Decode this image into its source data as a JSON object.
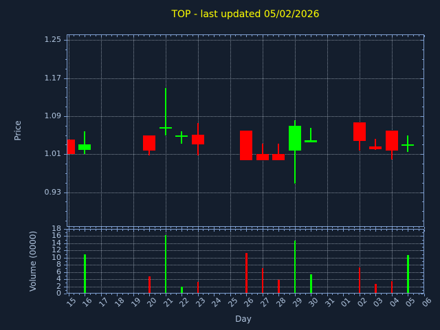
{
  "chart_data": {
    "type": "candlestick",
    "title": "TOP - last updated 05/02/2026",
    "xlabel": "Day",
    "price_ylabel": "Price",
    "volume_ylabel": "Volume (0000)",
    "x_ticklabels": [
      "15",
      "16",
      "17",
      "18",
      "19",
      "20",
      "21",
      "22",
      "23",
      "24",
      "25",
      "26",
      "27",
      "28",
      "29",
      "30",
      "31",
      "01",
      "02",
      "03",
      "04",
      "05",
      "06"
    ],
    "price_yticklabels": [
      "0.93",
      "1.01",
      "1.09",
      "1.17",
      "1.25"
    ],
    "volume_yticklabels": [
      "0",
      "2",
      "4",
      "6",
      "8",
      "10",
      "12",
      "14",
      "16",
      "18"
    ],
    "price_ylim": [
      0.857,
      1.262
    ],
    "volume_ylim": [
      0,
      18
    ],
    "grid": "dotted, horizontal at price/volume major ticks, vertical every 2 days",
    "grid_day_indices": [
      0,
      2,
      4,
      6,
      8,
      10,
      12,
      14,
      16,
      18,
      20,
      22
    ],
    "candles": [
      {
        "day": "15",
        "i": 0,
        "open": 1.04,
        "high": 1.04,
        "low": 1.01,
        "close": 1.01,
        "dir": "down",
        "volume": 0
      },
      {
        "day": "16",
        "i": 1,
        "open": 1.019,
        "high": 1.058,
        "low": 1.01,
        "close": 1.031,
        "dir": "up",
        "volume": 11.0
      },
      {
        "day": "20",
        "i": 5,
        "open": 1.05,
        "high": 1.05,
        "low": 1.008,
        "close": 1.018,
        "dir": "down",
        "volume": 4.8
      },
      {
        "day": "21",
        "i": 6,
        "open": 1.067,
        "high": 1.149,
        "low": 1.05,
        "close": 1.067,
        "dir": "up",
        "volume": 16.3
      },
      {
        "day": "22",
        "i": 7,
        "open": 1.05,
        "high": 1.058,
        "low": 1.032,
        "close": 1.05,
        "dir": "up",
        "volume": 1.9
      },
      {
        "day": "23",
        "i": 8,
        "open": 1.051,
        "high": 1.076,
        "low": 1.008,
        "close": 1.03,
        "dir": "down",
        "volume": 3.2
      },
      {
        "day": "26",
        "i": 11,
        "open": 1.06,
        "high": 1.06,
        "low": 0.998,
        "close": 0.998,
        "dir": "down",
        "volume": 11.3
      },
      {
        "day": "27",
        "i": 12,
        "open": 1.01,
        "high": 1.032,
        "low": 0.998,
        "close": 0.998,
        "dir": "down",
        "volume": 7.0
      },
      {
        "day": "28",
        "i": 13,
        "open": 1.01,
        "high": 1.032,
        "low": 0.998,
        "close": 0.998,
        "dir": "down",
        "volume": 3.8
      },
      {
        "day": "29",
        "i": 14,
        "open": 1.018,
        "high": 1.081,
        "low": 0.948,
        "close": 1.07,
        "dir": "up",
        "volume": 14.7
      },
      {
        "day": "30",
        "i": 15,
        "open": 1.039,
        "high": 1.065,
        "low": 1.039,
        "close": 1.039,
        "dir": "up",
        "volume": 5.4
      },
      {
        "day": "02",
        "i": 18,
        "open": 1.077,
        "high": 1.077,
        "low": 1.018,
        "close": 1.038,
        "dir": "down",
        "volume": 7.2
      },
      {
        "day": "03",
        "i": 19,
        "open": 1.026,
        "high": 1.042,
        "low": 1.019,
        "close": 1.02,
        "dir": "down",
        "volume": 2.6
      },
      {
        "day": "04",
        "i": 20,
        "open": 1.06,
        "high": 1.06,
        "low": 0.999,
        "close": 1.018,
        "dir": "down",
        "volume": 3.4
      },
      {
        "day": "05",
        "i": 21,
        "open": 1.031,
        "high": 1.05,
        "low": 1.014,
        "close": 1.031,
        "dir": "up",
        "volume": 10.7
      }
    ],
    "colors": {
      "up": "#00ff00",
      "down": "#ff0000",
      "background": "#141e2d",
      "spine": "#7e9ecf",
      "tick_label": "#b0c4de",
      "title": "#ffff00"
    },
    "legend": "none"
  }
}
